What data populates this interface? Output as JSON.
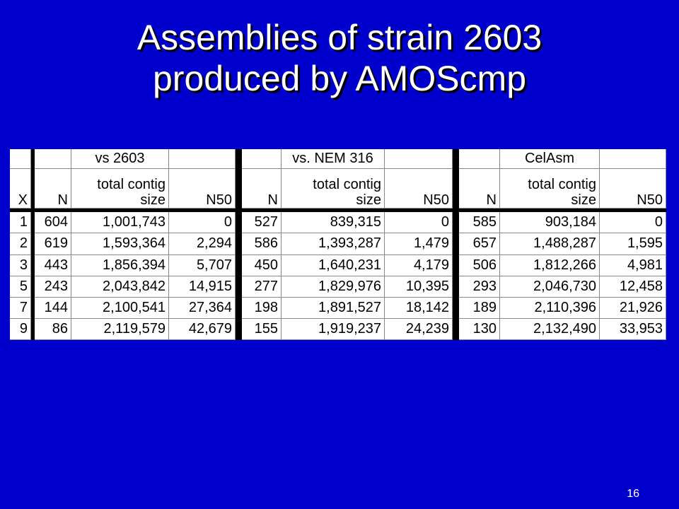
{
  "slide": {
    "title_line1": "Assemblies of strain 2603",
    "title_line2": "produced by AMOScmp",
    "page_number": "16"
  },
  "table": {
    "x_header": "X",
    "groups": [
      {
        "name": "vs 2603",
        "headers": {
          "n": "N",
          "size_line1": "total contig",
          "size_line2": "size",
          "n50": "N50"
        },
        "rows": [
          {
            "n": "604",
            "size": "1,001,743",
            "n50": "0"
          },
          {
            "n": "619",
            "size": "1,593,364",
            "n50": "2,294"
          },
          {
            "n": "443",
            "size": "1,856,394",
            "n50": "5,707"
          },
          {
            "n": "243",
            "size": "2,043,842",
            "n50": "14,915"
          },
          {
            "n": "144",
            "size": "2,100,541",
            "n50": "27,364"
          },
          {
            "n": "86",
            "size": "2,119,579",
            "n50": "42,679"
          }
        ]
      },
      {
        "name": "vs. NEM 316",
        "headers": {
          "n": "N",
          "size_line1": "total contig",
          "size_line2": "size",
          "n50": "N50"
        },
        "rows": [
          {
            "n": "527",
            "size": "839,315",
            "n50": "0"
          },
          {
            "n": "586",
            "size": "1,393,287",
            "n50": "1,479"
          },
          {
            "n": "450",
            "size": "1,640,231",
            "n50": "4,179"
          },
          {
            "n": "277",
            "size": "1,829,976",
            "n50": "10,395"
          },
          {
            "n": "198",
            "size": "1,891,527",
            "n50": "18,142"
          },
          {
            "n": "155",
            "size": "1,919,237",
            "n50": "24,239"
          }
        ]
      },
      {
        "name": "CelAsm",
        "headers": {
          "n": "N",
          "size_line1": "total contig",
          "size_line2": "size",
          "n50": "N50"
        },
        "rows": [
          {
            "n": "585",
            "size": "903,184",
            "n50": "0"
          },
          {
            "n": "657",
            "size": "1,488,287",
            "n50": "1,595"
          },
          {
            "n": "506",
            "size": "1,812,266",
            "n50": "4,981"
          },
          {
            "n": "293",
            "size": "2,046,730",
            "n50": "12,458"
          },
          {
            "n": "189",
            "size": "2,110,396",
            "n50": "21,926"
          },
          {
            "n": "130",
            "size": "2,132,490",
            "n50": "33,953"
          }
        ]
      }
    ],
    "x_values": [
      "1",
      "2",
      "3",
      "5",
      "7",
      "9"
    ]
  }
}
